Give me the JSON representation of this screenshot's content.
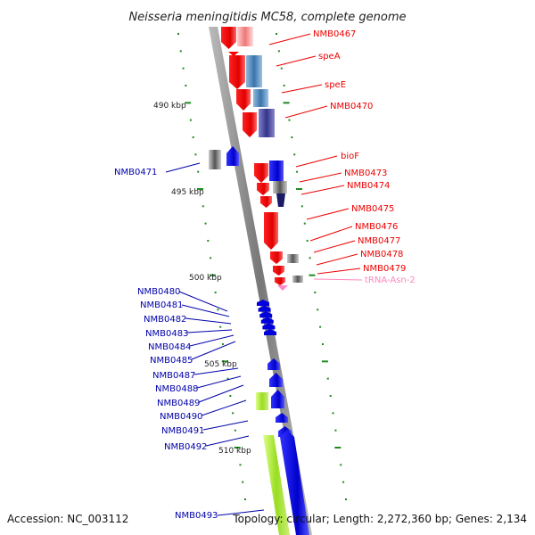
{
  "title": "Neisseria meningitidis MC58, complete genome",
  "footer": {
    "accession": "Accession: NC_003112",
    "topology": "Topology: circular; Length: 2,272,360 bp; Genes: 2,134"
  },
  "colors": {
    "forward": "#ff0000",
    "reverse": "#0000ee",
    "trna": "#ff88bb",
    "lime": "#aaee33",
    "backbone": "#888888",
    "tick": "#228822"
  },
  "scale_labels": [
    "490 kbp",
    "495 kbp",
    "500 kbp",
    "505 kbp",
    "510 kbp"
  ],
  "forward_genes": [
    "NMB0467",
    "speA",
    "speE",
    "NMB0470",
    "bioF",
    "NMB0473",
    "NMB0474",
    "NMB0475",
    "NMB0476",
    "NMB0477",
    "NMB0478",
    "NMB0479"
  ],
  "trna_genes": [
    "tRNA-Asn-2"
  ],
  "reverse_genes": [
    "NMB0471",
    "NMB0480",
    "NMB0481",
    "NMB0482",
    "NMB0483",
    "NMB0484",
    "NMB0485",
    "NMB0487",
    "NMB0488",
    "NMB0489",
    "NMB0490",
    "NMB0491",
    "NMB0492",
    "NMB0493"
  ]
}
